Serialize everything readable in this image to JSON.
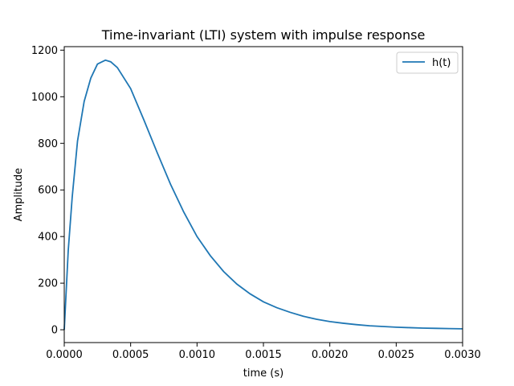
{
  "chart_data": {
    "type": "line",
    "title": "Time-invariant (LTI) system with impulse response",
    "xlabel": "time (s)",
    "ylabel": "Amplitude",
    "xlim": [
      0,
      0.003
    ],
    "ylim": [
      -55,
      1215
    ],
    "x_ticks": [
      0,
      0.0005,
      0.001,
      0.0015,
      0.002,
      0.0025,
      0.003
    ],
    "x_tick_labels": [
      "0.0000",
      "0.0005",
      "0.0010",
      "0.0015",
      "0.0020",
      "0.0025",
      "0.0030"
    ],
    "y_ticks": [
      0,
      200,
      400,
      600,
      800,
      1000,
      1200
    ],
    "y_tick_labels": [
      "0",
      "200",
      "400",
      "600",
      "800",
      "1000",
      "1200"
    ],
    "grid": false,
    "legend_position": "top-right",
    "series": [
      {
        "name": "h(t)",
        "color": "#1f77b4",
        "x": [
          0,
          3e-05,
          6e-05,
          0.0001,
          0.00015,
          0.0002,
          0.00025,
          0.00031,
          0.00035,
          0.0004,
          0.0005,
          0.0006,
          0.0007,
          0.0008,
          0.0009,
          0.001,
          0.0011,
          0.0012,
          0.0013,
          0.0014,
          0.0015,
          0.0016,
          0.0017,
          0.0018,
          0.0019,
          0.002,
          0.0021,
          0.0022,
          0.0023,
          0.0024,
          0.0025,
          0.0026,
          0.0027,
          0.0028,
          0.0029,
          0.003
        ],
        "y": [
          0,
          340,
          570,
          810,
          980,
          1080,
          1140,
          1157,
          1150,
          1125,
          1035,
          900,
          760,
          625,
          505,
          400,
          318,
          250,
          196,
          154,
          120,
          95,
          75,
          58,
          45,
          35,
          28,
          22,
          17,
          14,
          11,
          9,
          7,
          6,
          5,
          4
        ]
      }
    ]
  }
}
